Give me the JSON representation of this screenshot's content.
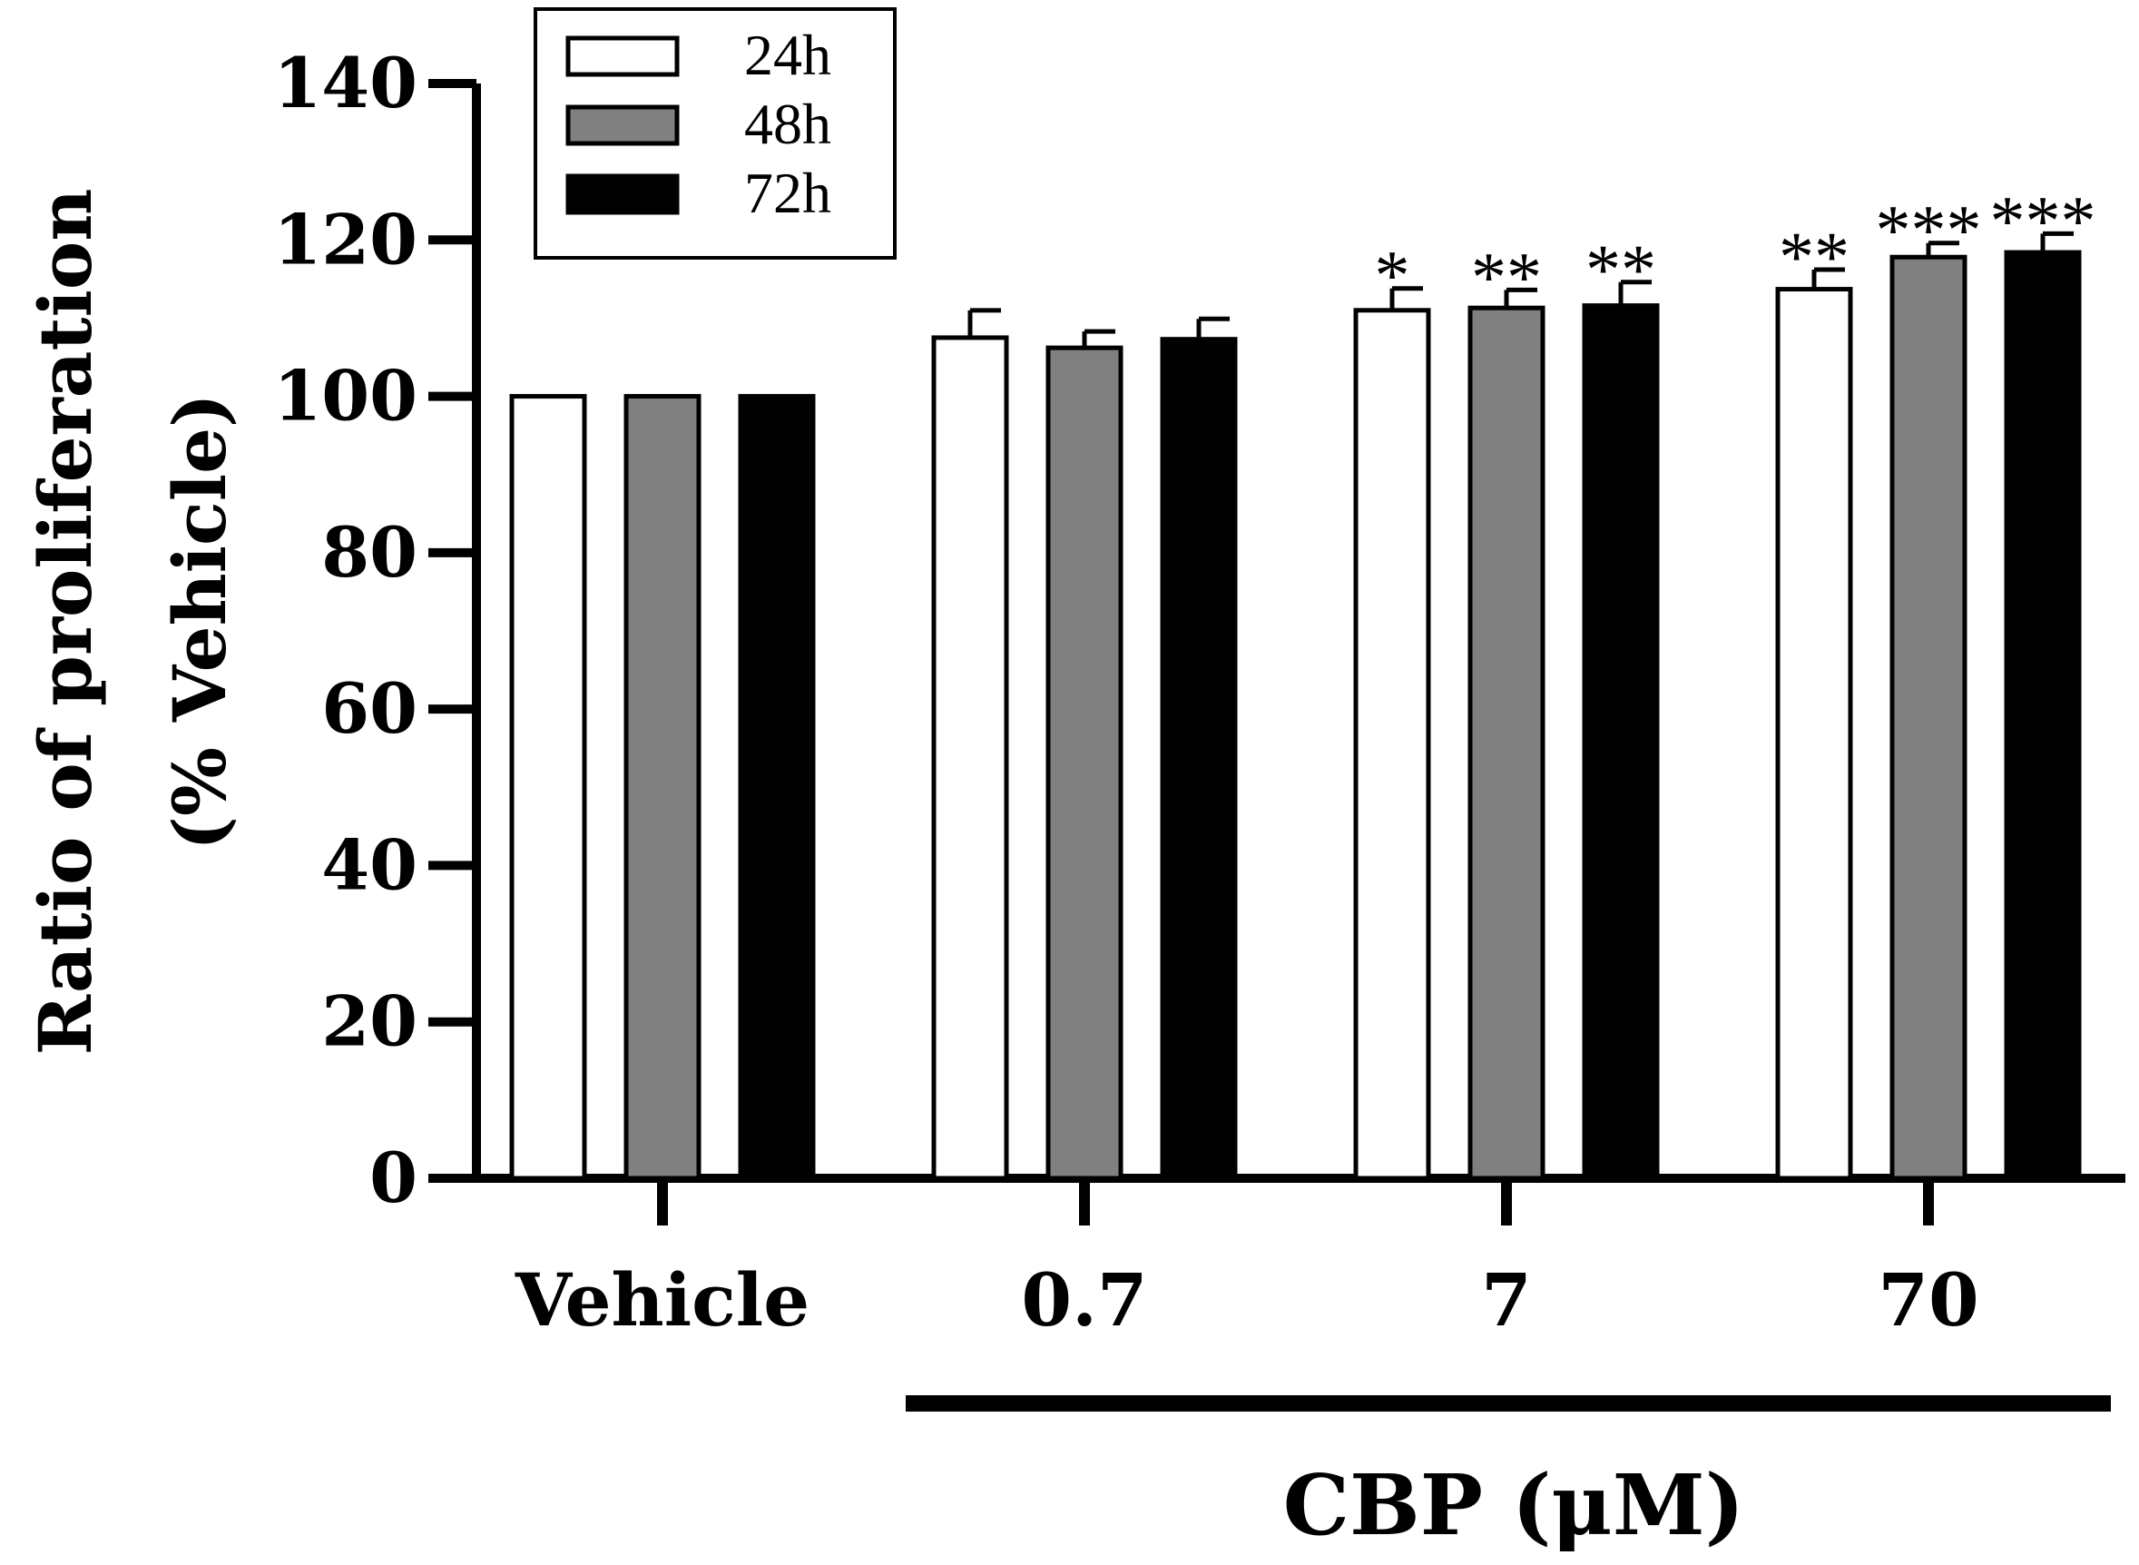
{
  "chart_data": {
    "type": "bar",
    "title": "",
    "xlabel": "CBP (μM)",
    "ylabel_line1": "Ratio of proliferation",
    "ylabel_line2": "(% Vehicle)",
    "categories": [
      "Vehicle",
      "0.7",
      "7",
      "70"
    ],
    "ylim": [
      0,
      140
    ],
    "yticks": [
      0,
      20,
      40,
      60,
      80,
      100,
      120,
      140
    ],
    "legend_position": "top-left",
    "series": [
      {
        "name": "24h",
        "color": "#ffffff",
        "values": [
          100,
          107.5,
          111,
          113.7
        ],
        "errors": [
          0,
          3.5,
          2.8,
          2.5
        ],
        "significance": [
          "",
          "",
          "*",
          "**"
        ]
      },
      {
        "name": "48h",
        "color": "#808080",
        "values": [
          100,
          106.2,
          111.3,
          117.8
        ],
        "errors": [
          0,
          2.1,
          2.3,
          1.8
        ],
        "significance": [
          "",
          "",
          "**",
          "***"
        ]
      },
      {
        "name": "72h",
        "color": "#000000",
        "values": [
          100,
          107.3,
          111.6,
          118.4
        ],
        "errors": [
          0,
          2.6,
          3.0,
          2.4
        ],
        "significance": [
          "",
          "",
          "**",
          "***"
        ]
      }
    ],
    "bracket_label": "CBP (μM)"
  }
}
